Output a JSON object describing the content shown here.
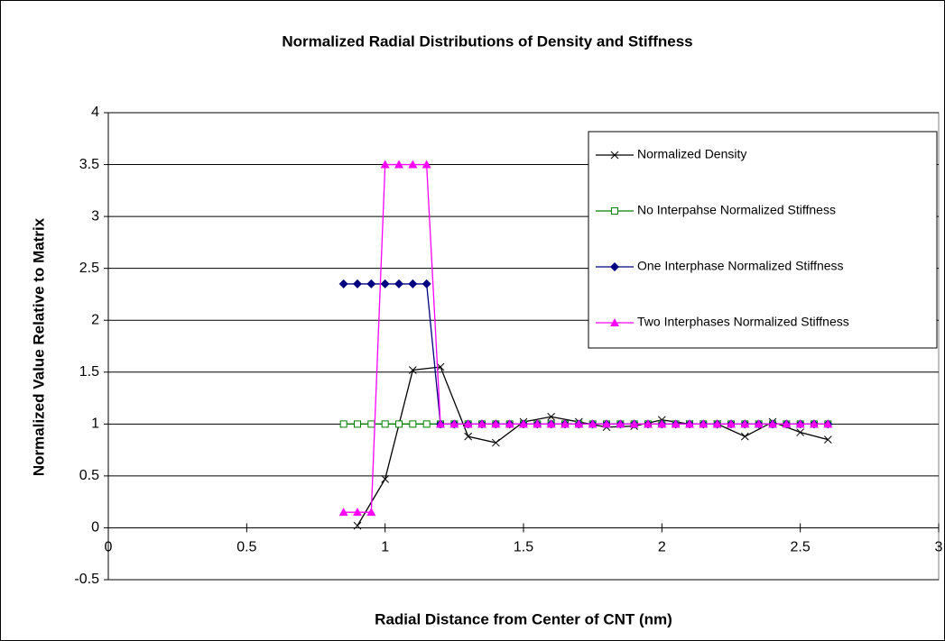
{
  "chart_data": {
    "type": "line",
    "title": "Normalized Radial Distributions of Density and Stiffness",
    "x_label": "Radial Distance from Center of CNT (nm)",
    "y_label": "Normalized Value Relative to Matrix",
    "xlim": [
      0,
      3
    ],
    "xticks": [
      0,
      0.5,
      1,
      1.5,
      2,
      2.5,
      3
    ],
    "ylim": [
      -0.5,
      4
    ],
    "yticks": [
      -0.5,
      0,
      0.5,
      1,
      1.5,
      2,
      2.5,
      3,
      3.5,
      4
    ],
    "grid": true,
    "legend": "upper right",
    "series": [
      {
        "name": "Normalized Density",
        "color": "#000000",
        "marker": "x",
        "x": [
          0.9,
          1,
          1.1,
          1.2,
          1.3,
          1.4,
          1.5,
          1.6,
          1.7,
          1.8,
          1.9,
          2,
          2.1,
          2.2,
          2.3,
          2.4,
          2.5,
          2.6
        ],
        "values": [
          0.02,
          0.47,
          1.52,
          1.55,
          0.88,
          0.82,
          1.02,
          1.07,
          1.02,
          0.97,
          0.98,
          1.04,
          1,
          1,
          0.88,
          1.02,
          0.92,
          0.85
        ]
      },
      {
        "name": "No Interpahse Normalized Stiffness",
        "color": "#008000",
        "marker": "square-open",
        "x": [
          0.85,
          0.9,
          0.95,
          1,
          1.05,
          1.1,
          1.15,
          1.2,
          1.25,
          1.3,
          1.35,
          1.4,
          1.45,
          1.5,
          1.55,
          1.6,
          1.65,
          1.7,
          1.75,
          1.8,
          1.85,
          1.9,
          1.95,
          2,
          2.05,
          2.1,
          2.15,
          2.2,
          2.25,
          2.3,
          2.35,
          2.4,
          2.45,
          2.5,
          2.55,
          2.6
        ],
        "values": [
          1,
          1,
          1,
          1,
          1,
          1,
          1,
          1,
          1,
          1,
          1,
          1,
          1,
          1,
          1,
          1,
          1,
          1,
          1,
          1,
          1,
          1,
          1,
          1,
          1,
          1,
          1,
          1,
          1,
          1,
          1,
          1,
          1,
          1,
          1,
          1
        ]
      },
      {
        "name": "One Interphase Normalized Stiffness",
        "color": "#000080",
        "marker": "diamond",
        "x": [
          0.85,
          0.9,
          0.95,
          1,
          1.05,
          1.1,
          1.15,
          1.2,
          1.25,
          1.3,
          1.35,
          1.4,
          1.45,
          1.5,
          1.55,
          1.6,
          1.65,
          1.7,
          1.75,
          1.8,
          1.85,
          1.9,
          1.95,
          2,
          2.05,
          2.1,
          2.15,
          2.2,
          2.25,
          2.3,
          2.35,
          2.4,
          2.45,
          2.5,
          2.55,
          2.6
        ],
        "values": [
          2.35,
          2.35,
          2.35,
          2.35,
          2.35,
          2.35,
          2.35,
          1,
          1,
          1,
          1,
          1,
          1,
          1,
          1,
          1,
          1,
          1,
          1,
          1,
          1,
          1,
          1,
          1,
          1,
          1,
          1,
          1,
          1,
          1,
          1,
          1,
          1,
          1,
          1,
          1
        ]
      },
      {
        "name": "Two Interphases Normalized Stiffness",
        "color": "#ff00ff",
        "marker": "triangle",
        "x": [
          0.85,
          0.9,
          0.95,
          1,
          1.05,
          1.1,
          1.15,
          1.2,
          1.25,
          1.3,
          1.35,
          1.4,
          1.45,
          1.5,
          1.55,
          1.6,
          1.65,
          1.7,
          1.75,
          1.8,
          1.85,
          1.9,
          1.95,
          2,
          2.05,
          2.1,
          2.15,
          2.2,
          2.25,
          2.3,
          2.35,
          2.4,
          2.45,
          2.5,
          2.55,
          2.6
        ],
        "values": [
          0.15,
          0.15,
          0.15,
          3.5,
          3.5,
          3.5,
          3.5,
          1,
          1,
          1,
          1,
          1,
          1,
          1,
          1,
          1,
          1,
          1,
          1,
          1,
          1,
          1,
          1,
          1,
          1,
          1,
          1,
          1,
          1,
          1,
          1,
          1,
          1,
          1,
          1,
          1
        ]
      }
    ]
  }
}
